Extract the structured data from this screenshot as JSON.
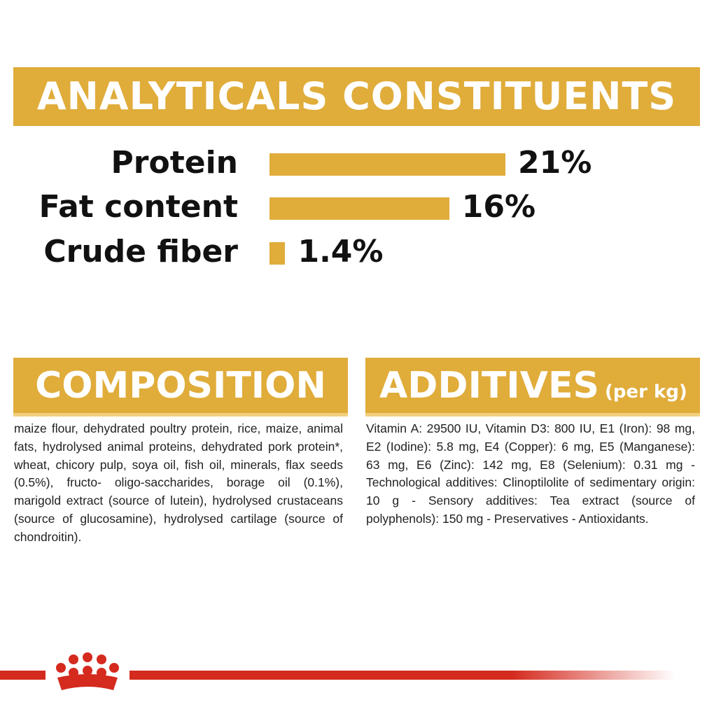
{
  "header": {
    "title": "ANALYTICALS CONSTITUENTS"
  },
  "chart_data": {
    "type": "bar",
    "orientation": "horizontal",
    "categories": [
      "Protein",
      "Fat content",
      "Crude fiber"
    ],
    "values": [
      21,
      16,
      1.4
    ],
    "value_labels": [
      "21%",
      "16%",
      "1.4%"
    ],
    "color": "#e0ac3a"
  },
  "composition": {
    "title": "COMPOSITION",
    "text": "maize flour, dehydrated poultry protein, rice, maize, animal fats, hydrolysed animal proteins, dehydrated pork protein*, wheat, chicory pulp, soya oil, fish oil, minerals, flax seeds (0.5%), fructo- oligo-saccharides, borage oil (0.1%), marigold extract (source of lutein), hydrolysed crustaceans (source of glucosamine), hydrolysed cartilage (source of chondroitin)."
  },
  "additives": {
    "title": "ADDITIVES",
    "unit": "(per kg)",
    "text": "Vitamin A: 29500 IU, Vitamin D3: 800 IU, E1 (Iron): 98 mg, E2 (Iodine): 5.8 mg, E4 (Copper): 6 mg, E5 (Manganese): 63 mg, E6 (Zinc): 142 mg, E8 (Selenium): 0.31 mg - Technological additives: Clinoptilolite of sedimentary origin: 10 g - Sensory additives: Tea extract (source of polyphenols): 150 mg - Preservatives - Antioxidants."
  }
}
